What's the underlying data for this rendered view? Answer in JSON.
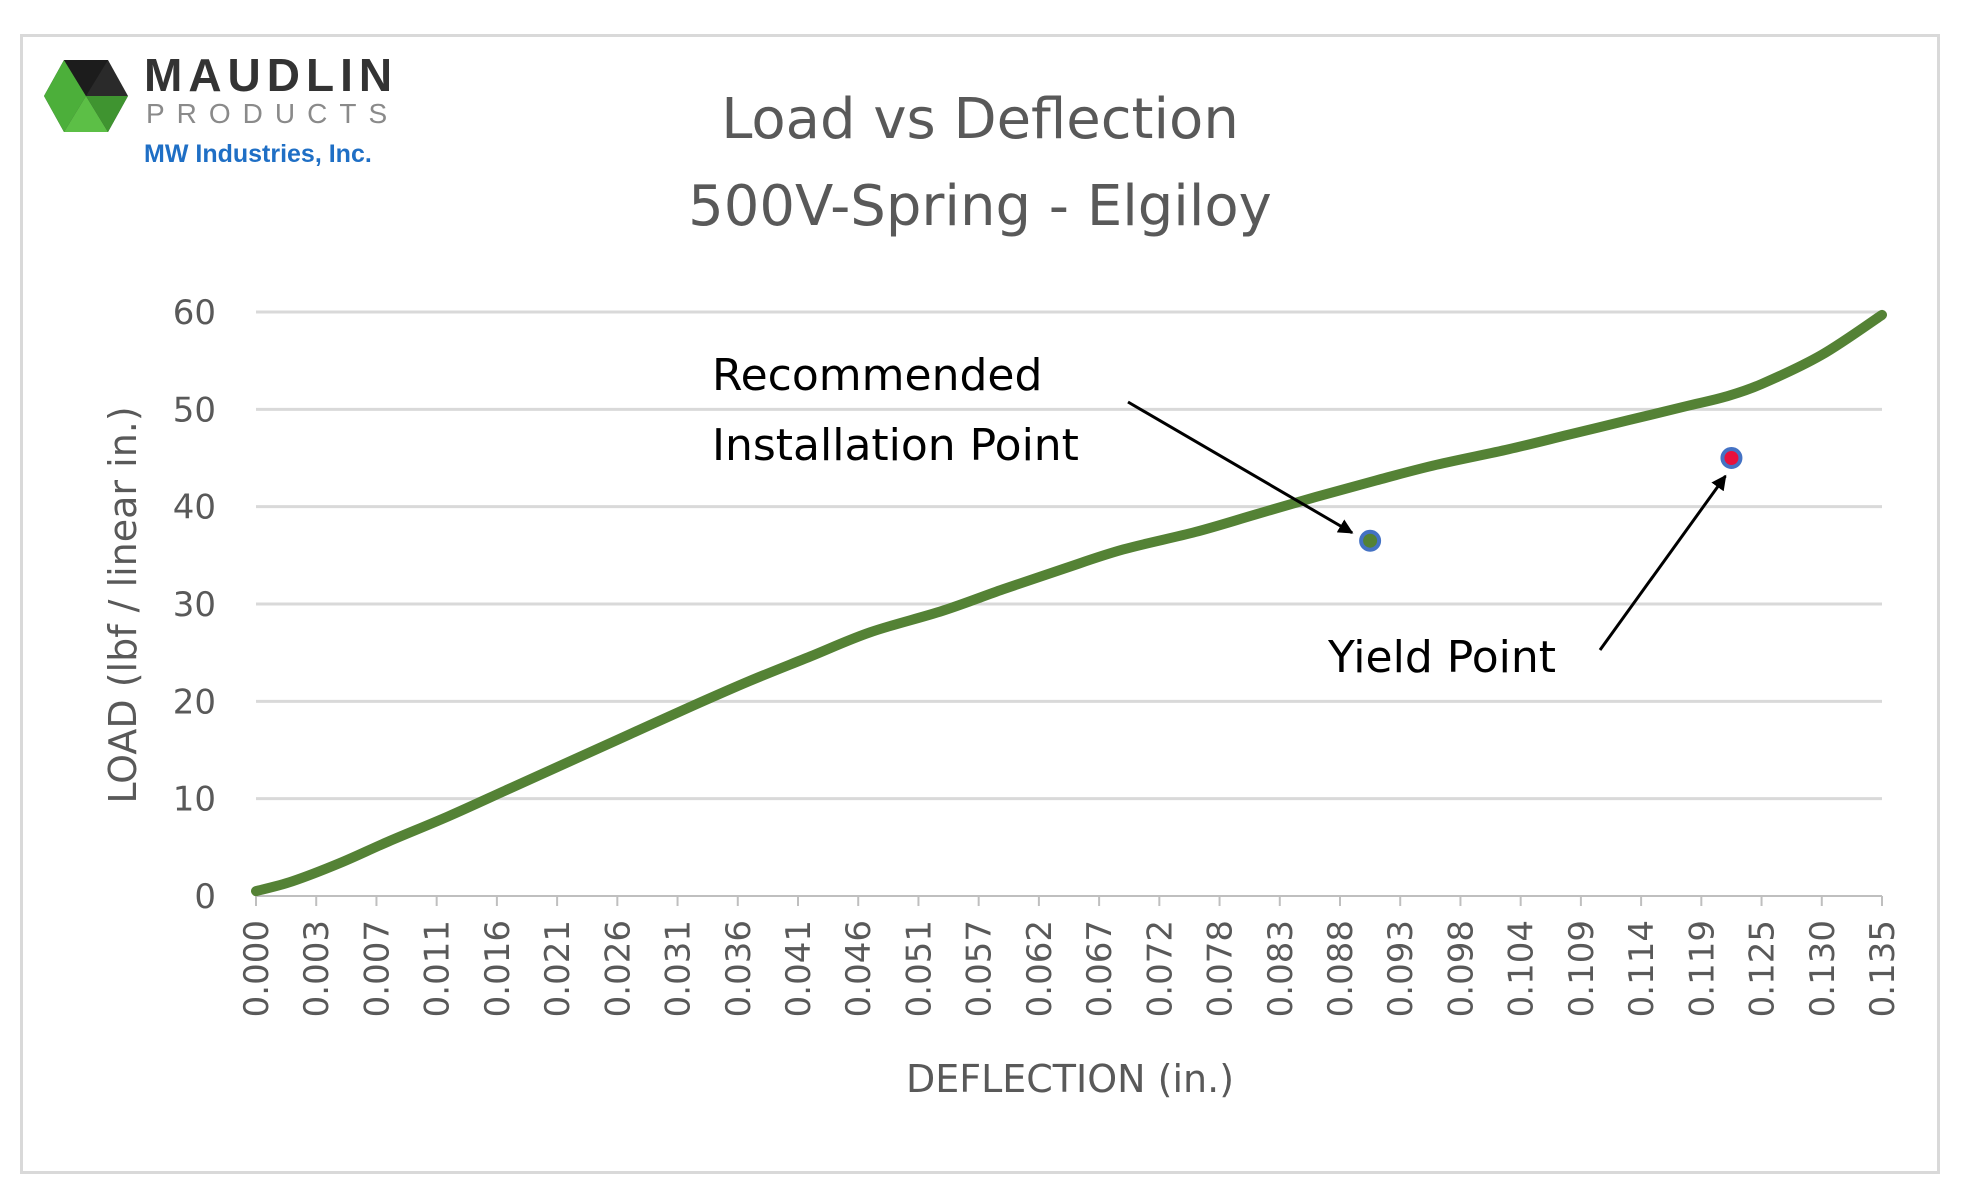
{
  "logo": {
    "name": "MAUDLIN",
    "sub": "PRODUCTS",
    "parent": "MW Industries, Inc.",
    "colors": [
      "#2a2a2a",
      "#4caf3a",
      "#1f6fc5"
    ]
  },
  "chart_data": {
    "type": "line",
    "title": "Load vs Deflection",
    "subtitle": "500V-Spring - Elgiloy",
    "xlabel": "DEFLECTION (in.)",
    "ylabel": "LOAD (lbf / linear in.)",
    "ylim": [
      0,
      60
    ],
    "yticks": [
      "0",
      "10",
      "20",
      "30",
      "40",
      "50",
      "60"
    ],
    "xlim": [
      0.0,
      0.135
    ],
    "xticks": [
      "0.000",
      "0.003",
      "0.007",
      "0.011",
      "0.016",
      "0.021",
      "0.026",
      "0.031",
      "0.036",
      "0.041",
      "0.046",
      "0.051",
      "0.057",
      "0.062",
      "0.067",
      "0.072",
      "0.078",
      "0.083",
      "0.088",
      "0.093",
      "0.098",
      "0.104",
      "0.109",
      "0.114",
      "0.119",
      "0.125",
      "0.130",
      "0.135"
    ],
    "grid": true,
    "line_color": "#548235",
    "series": [
      {
        "x": [
          0.0,
          0.003,
          0.007,
          0.011,
          0.016,
          0.021,
          0.026,
          0.031,
          0.036,
          0.041,
          0.046,
          0.051,
          0.057,
          0.062,
          0.067,
          0.072,
          0.078,
          0.083,
          0.088,
          0.093,
          0.098,
          0.104,
          0.109,
          0.114,
          0.119,
          0.122,
          0.125,
          0.13,
          0.135
        ],
        "y": [
          0.5,
          1.5,
          3.4,
          5.6,
          8.2,
          11.0,
          13.8,
          16.6,
          19.4,
          22.1,
          24.6,
          27.1,
          29.3,
          31.5,
          33.6,
          35.6,
          37.4,
          39.2,
          41.0,
          42.7,
          44.3,
          45.9,
          47.4,
          48.9,
          50.4,
          51.3,
          52.6,
          55.6,
          59.7
        ]
      }
    ],
    "annotations": [
      {
        "label_lines": [
          "Recommended",
          "Installation Point"
        ],
        "x": 0.0925,
        "y": 36.5,
        "marker_color": "#4472c4"
      },
      {
        "label_lines": [
          "Yield Point"
        ],
        "x": 0.1225,
        "y": 45.0,
        "marker_color": "#e8103c"
      }
    ]
  }
}
